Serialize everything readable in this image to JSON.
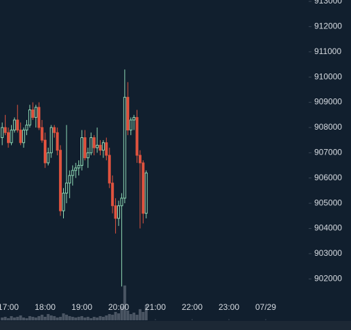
{
  "chart_data": {
    "type": "candlestick",
    "x": [
      1010,
      1015,
      1020,
      1025,
      1030,
      1035,
      1040,
      1045,
      1050,
      1055,
      1060,
      1065,
      1070,
      1075,
      1080,
      1085,
      1090,
      1095,
      1100,
      1105,
      1110,
      1115,
      1120,
      1125,
      1130,
      1135,
      1140,
      1145,
      1150,
      1155,
      1160,
      1165,
      1170,
      1175,
      1180,
      1185,
      1190,
      1195,
      1200,
      1205,
      1210,
      1215,
      1220,
      1225,
      1230,
      1235,
      1240,
      1245
    ],
    "open": [
      907600,
      908000,
      907800,
      907400,
      907900,
      908300,
      907900,
      907400,
      907900,
      908100,
      908700,
      908400,
      908800,
      908000,
      907500,
      906600,
      907000,
      908000,
      907800,
      907100,
      904700,
      905400,
      905800,
      906100,
      906300,
      906400,
      906500,
      907600,
      906800,
      907000,
      907600,
      907200,
      907300,
      907100,
      907400,
      906900,
      905800,
      904900,
      904400,
      904900,
      905200,
      909200,
      907900,
      908300,
      908400,
      906900,
      906600,
      904600
    ],
    "high": [
      908200,
      908500,
      908000,
      908100,
      908400,
      908900,
      908200,
      908000,
      908300,
      908900,
      909000,
      908900,
      909000,
      908300,
      907800,
      907200,
      908100,
      908100,
      908000,
      907300,
      905600,
      908100,
      906300,
      906500,
      906600,
      906700,
      907900,
      907900,
      907200,
      907800,
      907700,
      908000,
      907500,
      907500,
      907600,
      907200,
      906100,
      905200,
      905100,
      905400,
      910300,
      909800,
      908400,
      908500,
      908700,
      907100,
      906700,
      906300
    ],
    "low": [
      907300,
      907700,
      907200,
      907300,
      907800,
      907800,
      907300,
      907200,
      907700,
      908000,
      908300,
      908000,
      907900,
      907400,
      906400,
      906500,
      906800,
      907600,
      906900,
      904500,
      904400,
      905000,
      905200,
      905700,
      906000,
      906100,
      906300,
      906700,
      906400,
      906900,
      906900,
      907000,
      906900,
      906800,
      906700,
      905600,
      904600,
      903800,
      904100,
      901700,
      905000,
      907700,
      907700,
      907900,
      906600,
      904000,
      904200,
      904400
    ],
    "close": [
      908000,
      907800,
      907400,
      907900,
      908300,
      907900,
      907400,
      907900,
      908100,
      908700,
      908400,
      908800,
      908000,
      907500,
      906600,
      907000,
      908000,
      907800,
      907100,
      904700,
      905400,
      905800,
      906100,
      906300,
      906400,
      906500,
      907600,
      906800,
      907000,
      907600,
      907200,
      907300,
      907100,
      907400,
      906900,
      905800,
      904900,
      904400,
      904900,
      905200,
      909200,
      907900,
      908300,
      908400,
      906900,
      906600,
      904600,
      906200
    ],
    "volume": [
      4,
      5,
      3,
      6,
      4,
      5,
      7,
      4,
      3,
      6,
      5,
      4,
      6,
      8,
      5,
      9,
      7,
      6,
      4,
      5,
      10,
      8,
      6,
      5,
      4,
      5,
      6,
      4,
      5,
      3,
      5,
      4,
      6,
      5,
      7,
      9,
      8,
      12,
      10,
      20,
      50,
      14,
      9,
      11,
      8,
      16,
      12,
      22
    ],
    "up_color": "#8ed9b5",
    "down_color": "#e0533f",
    "volume_color": "#4a5563",
    "xlim": [
      1006.4,
      1510.2
    ],
    "ylim": [
      900360,
      913055
    ],
    "volume_lim": [
      0,
      460
    ],
    "yticks": [
      902000,
      903000,
      904000,
      905000,
      906000,
      907000,
      908000,
      909000,
      910000,
      911000,
      912000,
      913000
    ],
    "xticks": [
      {
        "value": 1020,
        "label": "17:00"
      },
      {
        "value": 1080,
        "label": "18:00"
      },
      {
        "value": 1140,
        "label": "19:00"
      },
      {
        "value": 1200,
        "label": "20:00"
      },
      {
        "value": 1260,
        "label": "21:00"
      },
      {
        "value": 1320,
        "label": "22:00"
      },
      {
        "value": 1380,
        "label": "23:00"
      },
      {
        "value": 1440,
        "label": "07/29"
      }
    ]
  }
}
